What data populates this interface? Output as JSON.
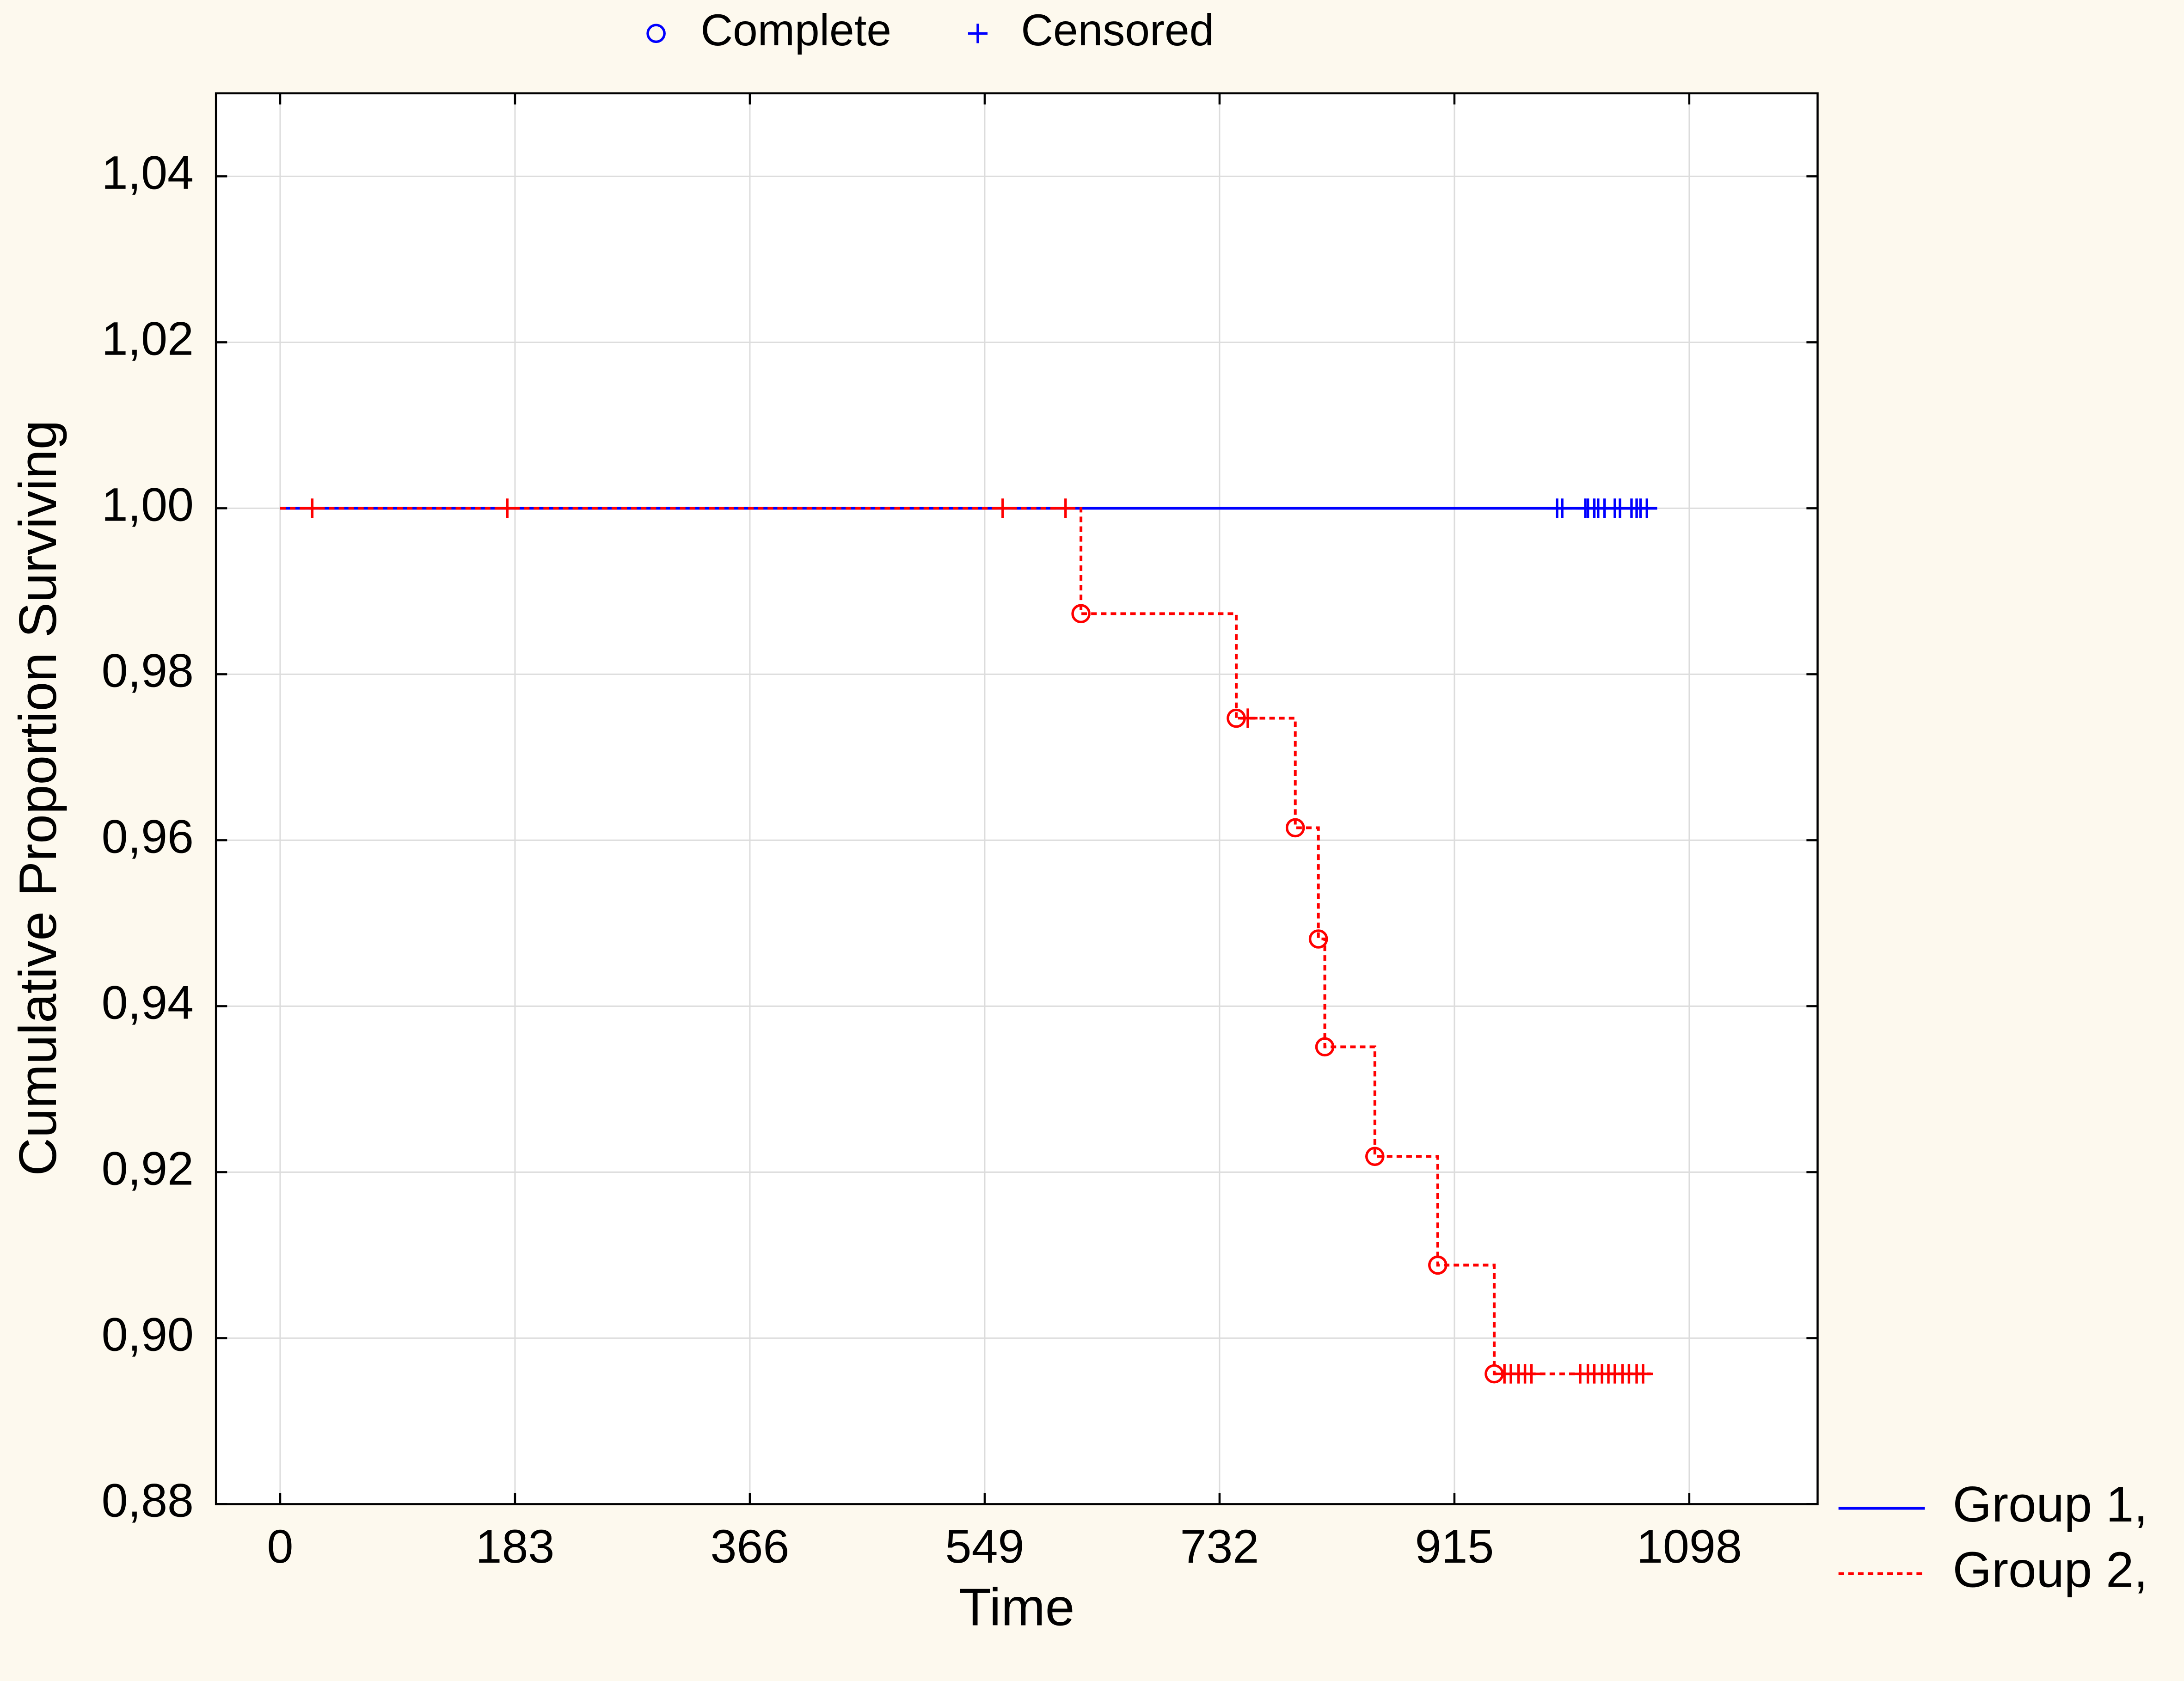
{
  "chart_data": {
    "type": "step",
    "x_label": "Time",
    "y_label": "Cumulative Proportion Surviving",
    "xlim": [
      -50,
      1198
    ],
    "xticks": [
      0,
      183,
      366,
      549,
      732,
      915,
      1098
    ],
    "ylim": [
      0.88,
      1.05
    ],
    "yticks": [
      {
        "value": 0.88,
        "label": "0,88"
      },
      {
        "value": 0.9,
        "label": "0,90"
      },
      {
        "value": 0.92,
        "label": "0,92"
      },
      {
        "value": 0.94,
        "label": "0,94"
      },
      {
        "value": 0.96,
        "label": "0,96"
      },
      {
        "value": 0.98,
        "label": "0,98"
      },
      {
        "value": 1.0,
        "label": "1,00"
      },
      {
        "value": 1.02,
        "label": "1,02"
      },
      {
        "value": 1.04,
        "label": "1,04"
      }
    ],
    "grid": true,
    "marker_legend": {
      "complete": "Complete",
      "censored": "Censored",
      "color": "#0000ff"
    },
    "series": [
      {
        "name": "Group 1,",
        "color": "#0000ff",
        "dashed": false,
        "x": [
          0,
          1073
        ],
        "values": [
          1,
          1
        ],
        "censored": {
          "x": [
            995,
            999,
            1017,
            1019,
            1024,
            1027,
            1032,
            1040,
            1044,
            1053,
            1057,
            1060,
            1065
          ],
          "values": [
            1,
            1,
            1,
            1,
            1,
            1,
            1,
            1,
            1,
            1,
            1,
            1,
            1
          ]
        }
      },
      {
        "name": "Group 2,",
        "color": "#ff0000",
        "dashed": true,
        "x": [
          0,
          624,
          624,
          745,
          745,
          791,
          791,
          809,
          809,
          814,
          814,
          853,
          853,
          902,
          902,
          946,
          946,
          1068
        ],
        "values": [
          1,
          1,
          0.9873,
          0.9873,
          0.9747,
          0.9747,
          0.9615,
          0.9615,
          0.9481,
          0.9481,
          0.9351,
          0.9351,
          0.9219,
          0.9219,
          0.9088,
          0.9088,
          0.8957,
          0.8957
        ],
        "complete": {
          "x": [
            624,
            745,
            791,
            809,
            814,
            853,
            902,
            946
          ],
          "values": [
            0.9873,
            0.9747,
            0.9615,
            0.9481,
            0.9351,
            0.9219,
            0.9088,
            0.8957
          ]
        },
        "censored": {
          "x": [
            25,
            177,
            563,
            612,
            754,
            954,
            959,
            965,
            970,
            975,
            1013,
            1019,
            1024,
            1030,
            1035,
            1040,
            1046,
            1051,
            1057,
            1062
          ],
          "values": [
            1,
            1,
            1,
            1,
            0.9747,
            0.8957,
            0.8957,
            0.8957,
            0.8957,
            0.8957,
            0.8957,
            0.8957,
            0.8957,
            0.8957,
            0.8957,
            0.8957,
            0.8957,
            0.8957,
            0.8957,
            0.8957
          ]
        }
      }
    ]
  }
}
